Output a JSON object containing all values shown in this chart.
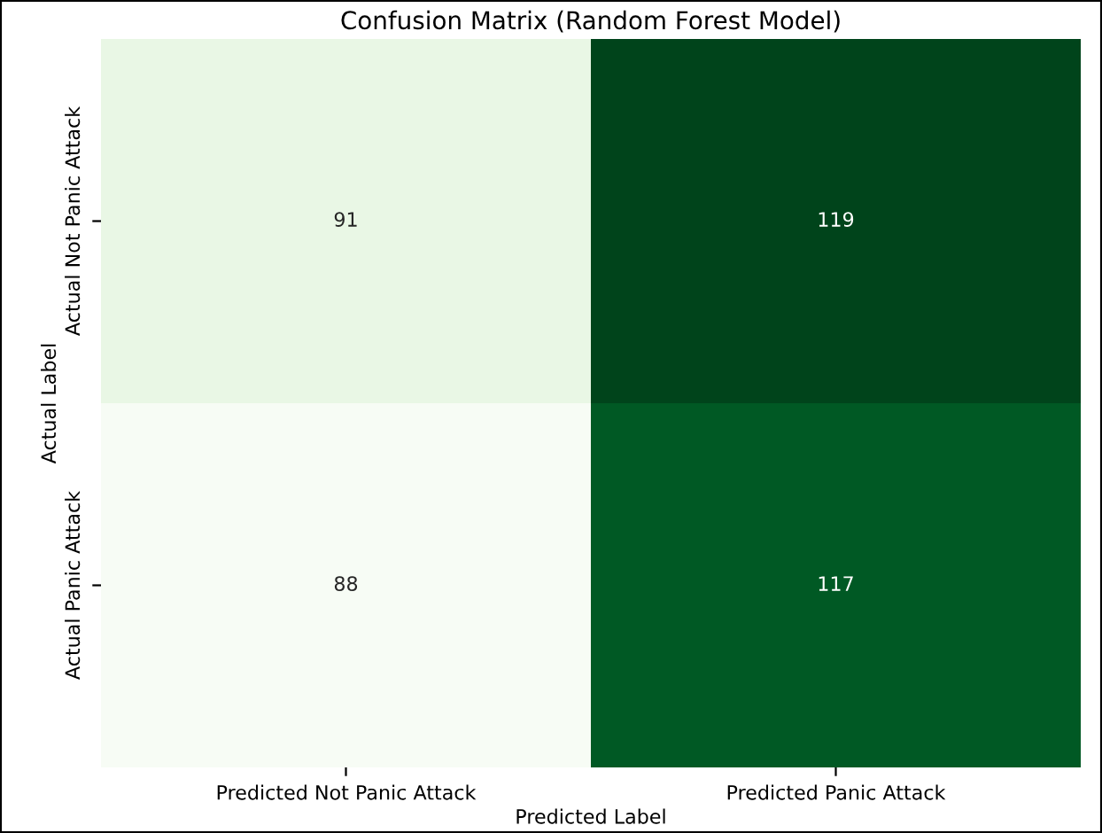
{
  "chart_data": {
    "type": "heatmap",
    "title": "Confusion Matrix (Random Forest Model)",
    "xlabel": "Predicted Label",
    "ylabel": "Actual Label",
    "categories": [
      "Predicted Not Panic Attack",
      "Predicted Panic Attack"
    ],
    "y_categories": [
      "Actual Not Panic Attack",
      "Actual Panic Attack"
    ],
    "cells": [
      [
        91,
        119
      ],
      [
        88,
        117
      ]
    ],
    "data_labels": true
  }
}
